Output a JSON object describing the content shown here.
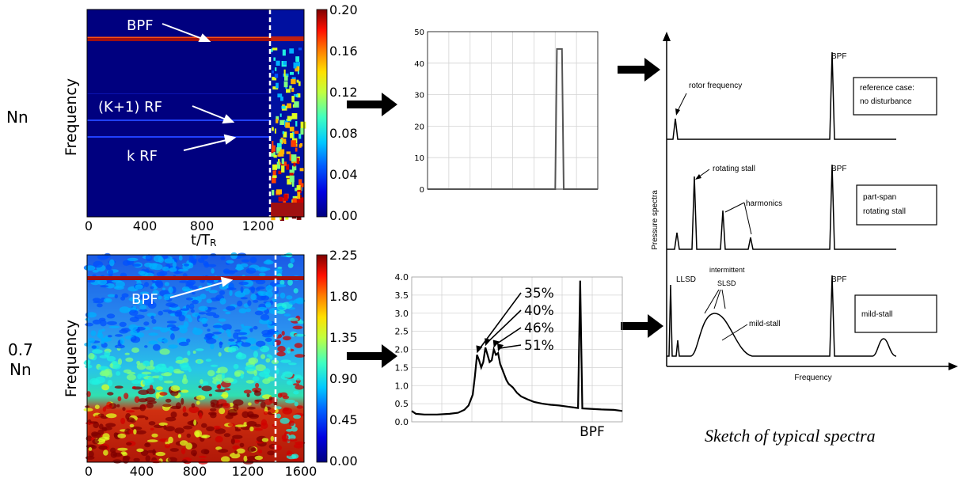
{
  "colormap": [
    "#00007f",
    "#0000e0",
    "#0050ff",
    "#00b0ff",
    "#20f0e0",
    "#7fff80",
    "#e0ff20",
    "#ffb000",
    "#ff4000",
    "#d00000",
    "#7f0000"
  ],
  "row_labels": {
    "top": "Nn",
    "bottom_line1": "0.7",
    "bottom_line2": "Nn"
  },
  "spectrogram_top": {
    "ylabel": "Frequency",
    "xlabel_main": "t/T",
    "xlabel_sub": "R",
    "xticks": [
      "0",
      "400",
      "800",
      "1200"
    ],
    "colorbar_ticks": [
      "0.20",
      "0.16",
      "0.12",
      "0.08",
      "0.04",
      "0.00"
    ],
    "annotations": [
      "BPF",
      "(K+1) RF",
      "k RF"
    ]
  },
  "spectrogram_bottom": {
    "ylabel": "Frequency",
    "xticks": [
      "0",
      "400",
      "800",
      "1200",
      "1600"
    ],
    "colorbar_ticks": [
      "2.25",
      "1.80",
      "1.35",
      "0.90",
      "0.45",
      "0.00"
    ],
    "annotations": [
      "BPF"
    ]
  },
  "chart_data": [
    {
      "type": "line",
      "name_id": "spectrum-top",
      "yticks": [
        "50",
        "40",
        "30",
        "20",
        "10",
        "0"
      ],
      "ylim": [
        0,
        50
      ],
      "grid": true,
      "x": [
        0,
        0.75,
        0.76,
        0.77,
        0.78,
        0.79,
        0.8,
        1.0
      ],
      "values": [
        0,
        0,
        44.5,
        44.5,
        44.5,
        44.5,
        0,
        0
      ]
    },
    {
      "type": "line",
      "name_id": "spectrum-bottom",
      "yticks": [
        "4.0",
        "3.5",
        "3.0",
        "2.5",
        "2.0",
        "1.5",
        "1.0",
        "0.5",
        "0.0"
      ],
      "ylim": [
        0,
        4
      ],
      "grid": true,
      "xtick_label": "BPF",
      "x": [
        0.0,
        0.02,
        0.06,
        0.12,
        0.18,
        0.22,
        0.25,
        0.27,
        0.29,
        0.3,
        0.31,
        0.32,
        0.33,
        0.34,
        0.35,
        0.36,
        0.37,
        0.38,
        0.39,
        0.4,
        0.41,
        0.42,
        0.43,
        0.44,
        0.45,
        0.46,
        0.48,
        0.5,
        0.52,
        0.55,
        0.58,
        0.62,
        0.66,
        0.7,
        0.74,
        0.79,
        0.8,
        0.81,
        0.84,
        0.9,
        0.96,
        1.0
      ],
      "values": [
        0.3,
        0.22,
        0.2,
        0.2,
        0.22,
        0.25,
        0.33,
        0.45,
        0.75,
        1.25,
        1.85,
        1.7,
        1.5,
        1.65,
        2.05,
        1.85,
        1.65,
        1.7,
        2.0,
        1.85,
        1.9,
        1.6,
        1.45,
        1.3,
        1.15,
        1.05,
        0.95,
        0.8,
        0.7,
        0.62,
        0.55,
        0.5,
        0.47,
        0.45,
        0.42,
        0.38,
        3.9,
        0.37,
        0.36,
        0.34,
        0.33,
        0.3
      ],
      "annotations": [
        {
          "label": "35%",
          "x": 0.31
        },
        {
          "label": "40%",
          "x": 0.35
        },
        {
          "label": "46%",
          "x": 0.39
        },
        {
          "label": "51%",
          "x": 0.41
        }
      ]
    }
  ],
  "sketch": {
    "ylabel": "Pressure spectra",
    "xlabel": "Frequency",
    "caption": "Sketch of typical spectra",
    "panels": [
      {
        "bpf": "BPF",
        "note": "rotor frequency",
        "box": [
          "reference case:",
          "no disturbance"
        ]
      },
      {
        "bpf": "BPF",
        "note": "rotating stall",
        "note2": "harmonics",
        "box": [
          "part-span",
          "rotating stall"
        ]
      },
      {
        "bpf": "BPF",
        "note": "LLSD",
        "note2": "intermittent",
        "note3": "SLSD",
        "note4": "mild-stall",
        "box": [
          "mild-stall"
        ]
      }
    ]
  }
}
